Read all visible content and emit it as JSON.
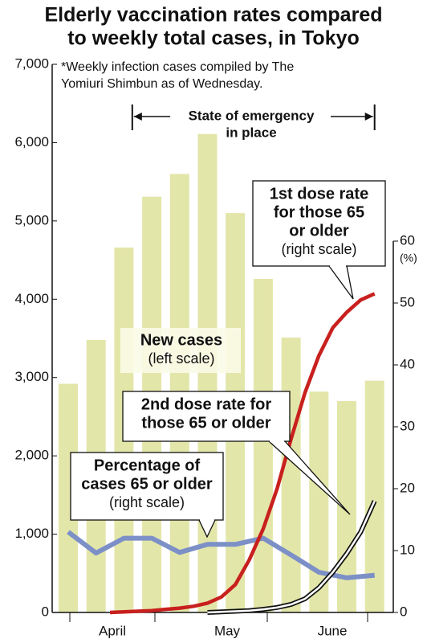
{
  "chart_data": {
    "type": "bar_line_combo",
    "title_lines": [
      "Elderly vaccination rates compared",
      "to weekly total cases, in Tokyo"
    ],
    "note_lines": [
      "*Weekly infection cases compiled by The",
      "Yomiuri Shimbun as of Wednesday."
    ],
    "emergency_lines": [
      "State of emergency",
      "in place"
    ],
    "emergency_span": [
      2.3,
      11
    ],
    "categories": [
      null,
      null,
      null,
      null,
      null,
      null,
      null,
      null,
      null,
      null,
      null,
      null
    ],
    "months": [
      "April",
      "May",
      "June"
    ],
    "bars": {
      "label_lines": [
        "New cases"
      ],
      "scale_note": "(left scale)",
      "color": "#e3e6a9",
      "values": [
        2920,
        3480,
        4660,
        5310,
        5600,
        6110,
        5100,
        4260,
        3510,
        2820,
        2700,
        2960
      ]
    },
    "series": [
      {
        "label_lines": [
          "Percentage of",
          "cases 65 or older"
        ],
        "scale_note": "(right scale)",
        "color": "#7c90c7",
        "axis": "y2",
        "x": [
          0,
          1,
          2,
          3,
          4,
          5,
          6,
          7,
          8,
          9,
          10,
          11
        ],
        "values": [
          13,
          9.6,
          12,
          12,
          9.7,
          11,
          11,
          12,
          9.3,
          6.5,
          5.6,
          6
        ]
      },
      {
        "label_lines": [
          "1st dose rate",
          "for those 65",
          "or older"
        ],
        "scale_note": "(right scale)",
        "color": "#c8201e",
        "axis": "y2",
        "x": [
          1.5,
          2,
          2.5,
          3,
          3.5,
          4,
          4.5,
          5,
          5.5,
          6,
          6.5,
          7,
          7.5,
          8,
          8.5,
          9,
          9.5,
          10,
          10.5,
          11
        ],
        "values": [
          0,
          0.1,
          0.2,
          0.3,
          0.5,
          0.7,
          1,
          1.5,
          2.5,
          4.5,
          8.5,
          13.5,
          20,
          28,
          35.5,
          41.5,
          46,
          48.5,
          50.5,
          51.5
        ]
      },
      {
        "label_lines": [
          "2nd dose rate for",
          "those 65 or older"
        ],
        "color": "#ffffff",
        "axis": "y2",
        "x": [
          5,
          5.5,
          6,
          6.5,
          7,
          7.5,
          8,
          8.5,
          9,
          9.5,
          10,
          10.5,
          11
        ],
        "values": [
          0,
          0.1,
          0.2,
          0.3,
          0.5,
          0.8,
          1.3,
          2.2,
          4,
          6.5,
          9.5,
          13,
          18
        ]
      }
    ],
    "ylim": [
      0,
      7000
    ],
    "yticks": [
      0,
      {
        "value": 1000,
        "label": "1,000"
      },
      {
        "value": 2000,
        "label": "2,000"
      },
      {
        "value": 3000,
        "label": "3,000"
      },
      {
        "value": 4000,
        "label": "4,000"
      },
      {
        "value": 5000,
        "label": "5,000"
      },
      {
        "value": 6000,
        "label": "6,000"
      },
      {
        "value": 7000,
        "label": "7,000"
      }
    ],
    "y2lim": [
      0,
      60
    ],
    "y2ticks": [
      0,
      10,
      20,
      30,
      40,
      50,
      60
    ],
    "y2_unit": "(%)"
  }
}
